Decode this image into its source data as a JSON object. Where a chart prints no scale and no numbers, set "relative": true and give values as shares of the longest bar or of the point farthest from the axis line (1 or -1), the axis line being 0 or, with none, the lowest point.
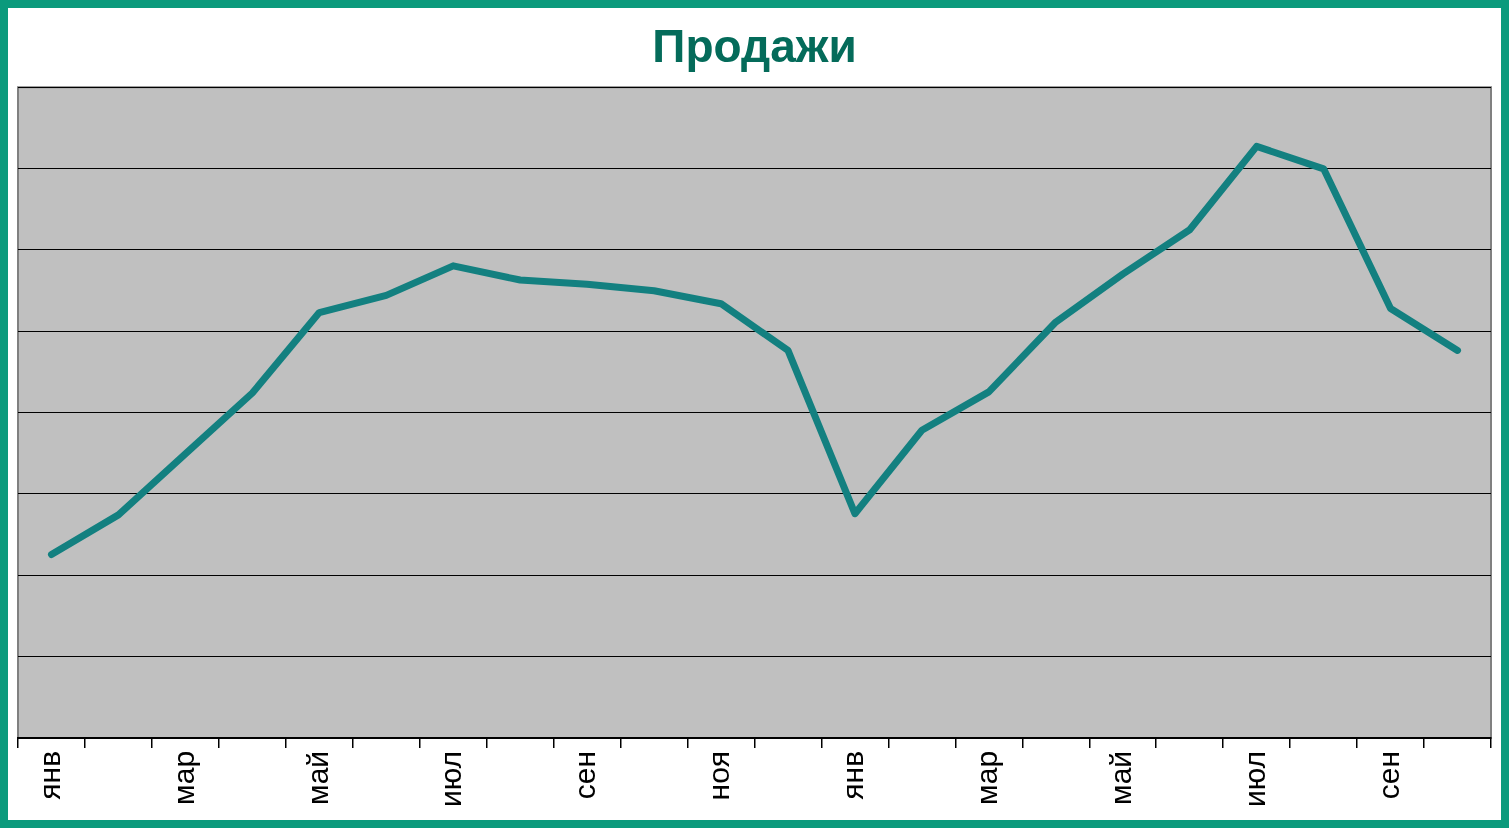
{
  "chart_data": {
    "type": "line",
    "title": "Продажи",
    "relative": true,
    "grid": "y",
    "legend": false,
    "marker": "none",
    "line_style": "solid",
    "categories": [
      "янв",
      null,
      "мар",
      null,
      "май",
      null,
      "июл",
      null,
      "сен",
      null,
      "ноя",
      null,
      "янв",
      null,
      "мар",
      null,
      "май",
      null,
      "июл",
      null,
      "сен",
      null
    ],
    "series": [
      {
        "color": "#138080",
        "values": [
          0.31,
          0.377,
          0.48,
          0.583,
          0.719,
          0.748,
          0.798,
          0.774,
          0.767,
          0.756,
          0.734,
          0.655,
          0.379,
          0.52,
          0.585,
          0.703,
          0.784,
          0.859,
          1,
          0.962,
          0.726,
          0.655
        ]
      }
    ]
  }
}
